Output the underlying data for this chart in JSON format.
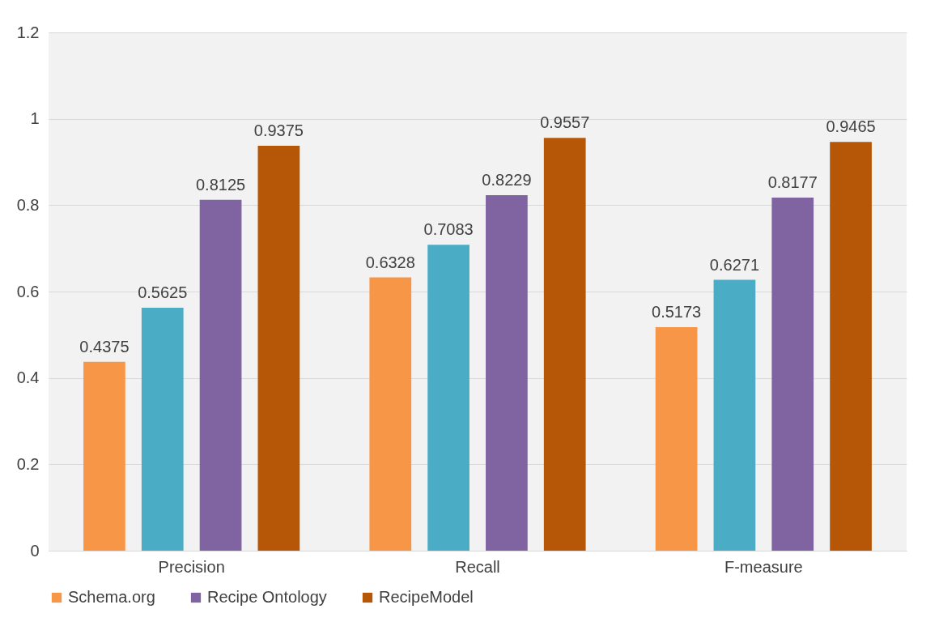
{
  "chart_data": {
    "type": "bar",
    "categories": [
      "Precision",
      "Recall",
      "F-measure"
    ],
    "series": [
      {
        "name": "Schema.org",
        "color": "#f79646",
        "values": [
          0.4375,
          0.6328,
          0.5173
        ]
      },
      {
        "color": "#4bacc6",
        "values": [
          0.5625,
          0.7083,
          0.6271
        ]
      },
      {
        "name": "Recipe Ontology",
        "color": "#8064a2",
        "values": [
          0.8125,
          0.8229,
          0.8177
        ]
      },
      {
        "name": "RecipeModel",
        "color": "#b65708",
        "values": [
          0.9375,
          0.9557,
          0.9465
        ]
      }
    ],
    "ylim": [
      0,
      1.2
    ],
    "yticks": [
      0,
      0.2,
      0.4,
      0.6,
      0.8,
      1,
      1.2
    ],
    "grid": "y",
    "legend": "bottom",
    "data_labels": true
  }
}
